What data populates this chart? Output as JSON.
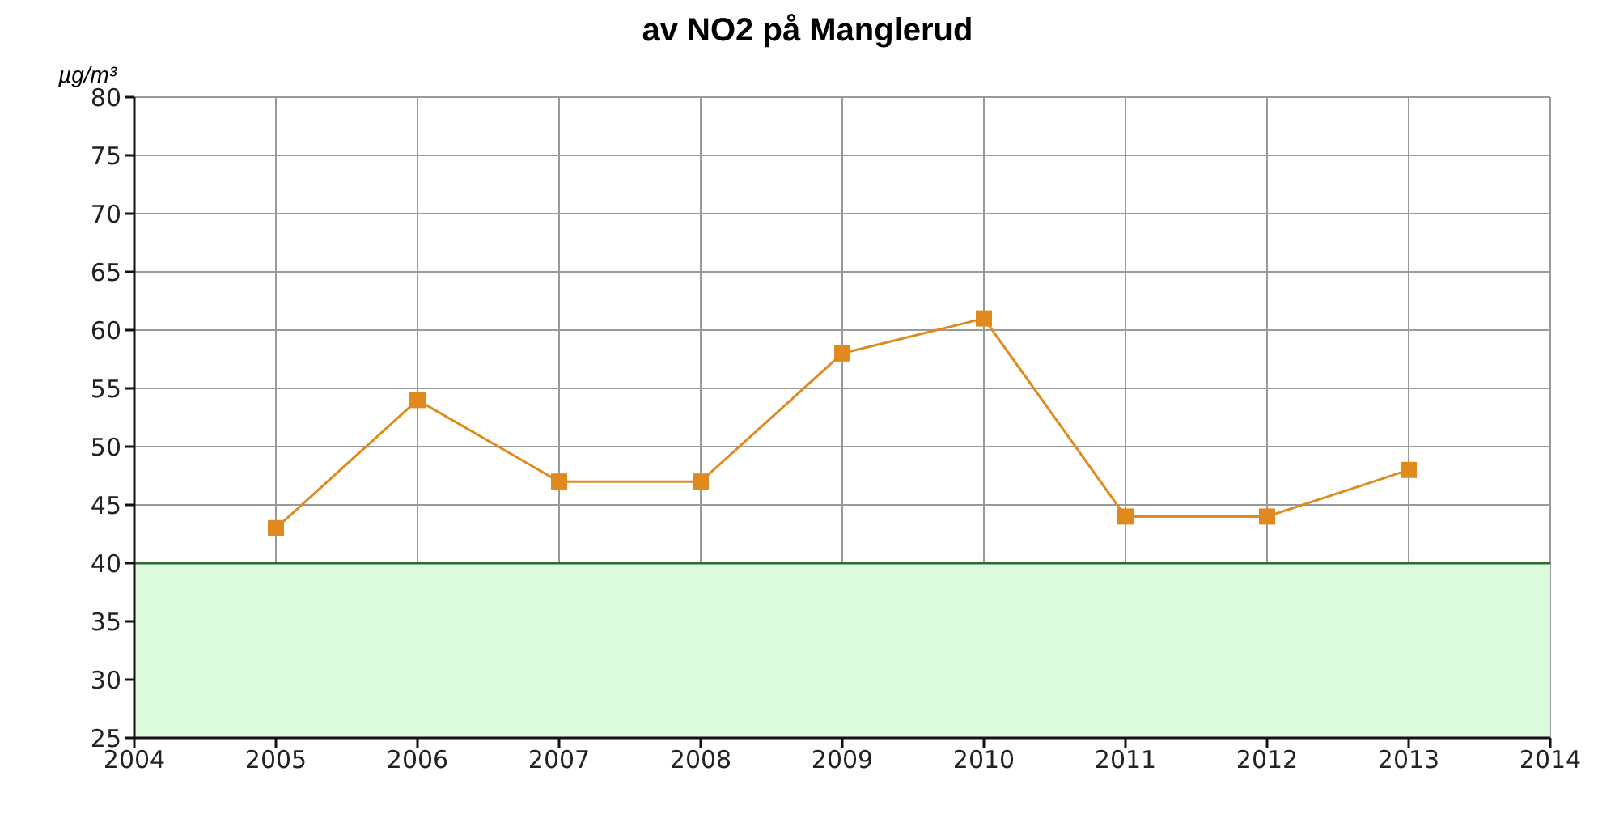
{
  "chart_data": {
    "type": "line",
    "title": "av NO2 på Manglerud",
    "ylabel": "µg/m³",
    "x": [
      2005,
      2006,
      2007,
      2008,
      2009,
      2010,
      2011,
      2012,
      2013
    ],
    "series": [
      {
        "color": "#e08a1e",
        "values": [
          43,
          54,
          47,
          47,
          58,
          61,
          44,
          44,
          48
        ]
      }
    ],
    "xlim": [
      2004,
      2014
    ],
    "xticks": [
      2004,
      2005,
      2006,
      2007,
      2008,
      2009,
      2010,
      2011,
      2012,
      2013,
      2014
    ],
    "ylim": [
      25,
      80
    ],
    "yticks": [
      25,
      30,
      35,
      40,
      45,
      50,
      55,
      60,
      65,
      70,
      75,
      80
    ],
    "bands": [
      {
        "axis": "y",
        "from": 25,
        "to": 40,
        "color": "#dcfadc"
      }
    ],
    "ref_lines": [
      {
        "axis": "y",
        "value": 40,
        "color": "#2f6b2f",
        "line_style": "solid"
      }
    ],
    "grid": true,
    "marker": "square",
    "line_style": "solid"
  }
}
